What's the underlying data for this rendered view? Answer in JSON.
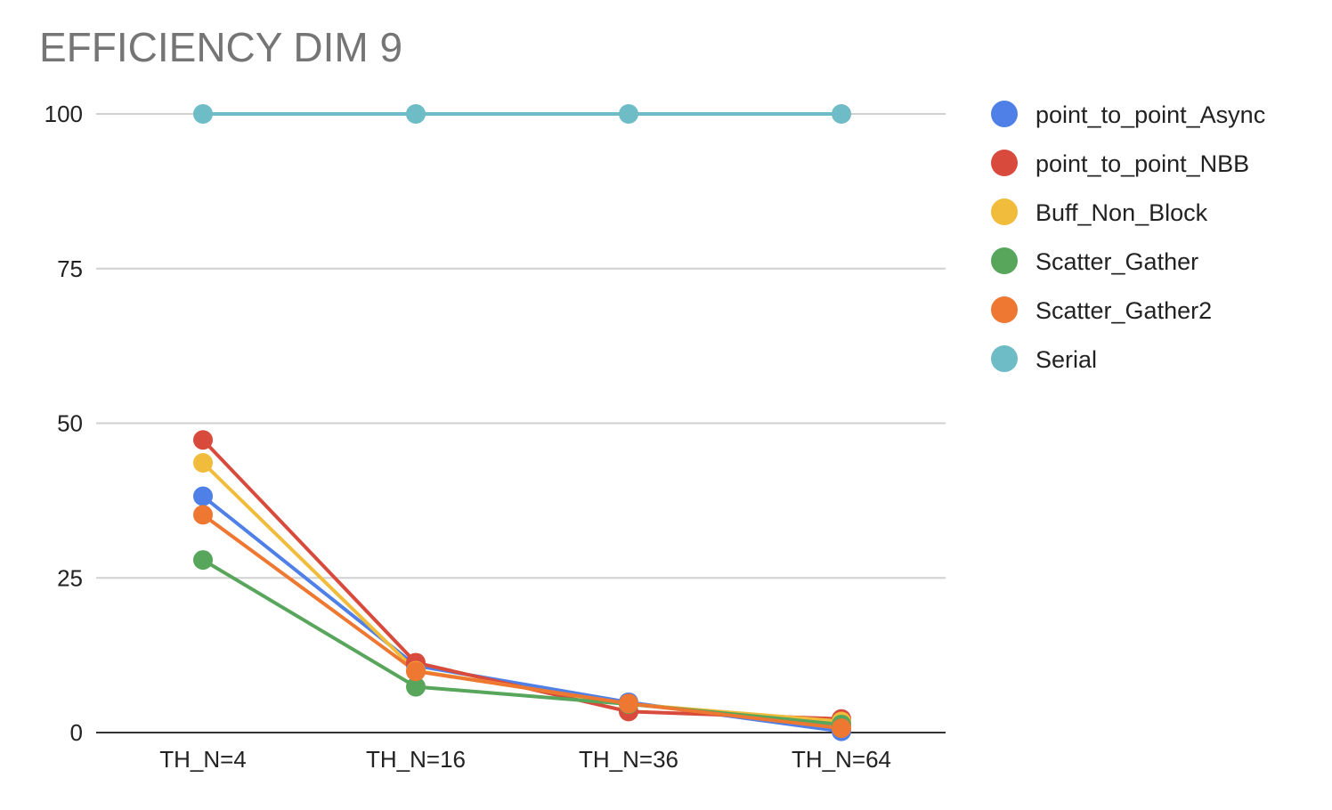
{
  "chart_data": {
    "type": "line",
    "title": "EFFICIENCY DIM 9",
    "xlabel": "",
    "ylabel": "",
    "categories": [
      "TH_N=4",
      "TH_N=16",
      "TH_N=36",
      "TH_N=64"
    ],
    "ylim": [
      0,
      100
    ],
    "yticks": [
      0,
      25,
      50,
      75,
      100
    ],
    "grid": true,
    "legend_position": "right",
    "series": [
      {
        "name": "point_to_point_Async",
        "color": "#4f80e8",
        "values": [
          38.2,
          10.8,
          4.9,
          0.2
        ]
      },
      {
        "name": "point_to_point_NBB",
        "color": "#d84b3c",
        "values": [
          47.3,
          11.3,
          3.4,
          2.2
        ]
      },
      {
        "name": "Buff_Non_Block",
        "color": "#f1bc3c",
        "values": [
          43.6,
          10.0,
          4.6,
          1.8
        ]
      },
      {
        "name": "Scatter_Gather",
        "color": "#58a55c",
        "values": [
          27.9,
          7.4,
          4.6,
          1.3
        ]
      },
      {
        "name": "Scatter_Gather2",
        "color": "#ee7731",
        "values": [
          35.2,
          9.9,
          4.7,
          0.7
        ]
      },
      {
        "name": "Serial",
        "color": "#6dbcc6",
        "values": [
          100,
          100,
          100,
          100
        ]
      }
    ]
  }
}
